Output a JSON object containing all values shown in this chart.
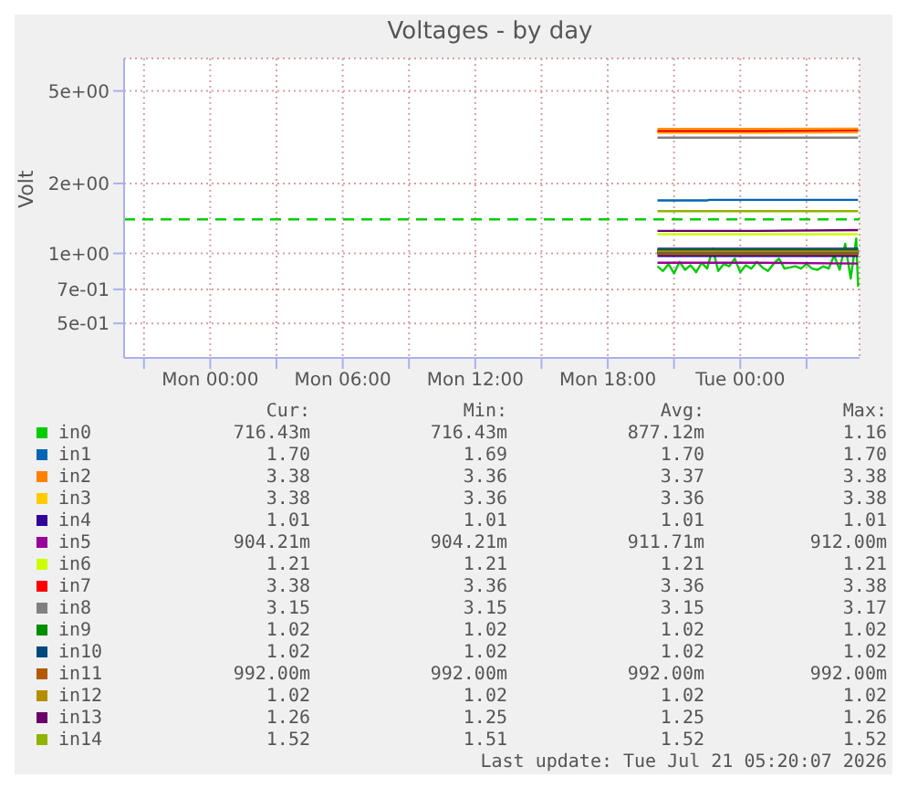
{
  "chart_data": {
    "type": "line",
    "title": "Voltages - by day",
    "ylabel": "Volt",
    "log": true,
    "grid": true,
    "legend": "bottom",
    "xlim": [
      "2026-07-19T20:06",
      "2026-07-21T05:24"
    ],
    "xticks": [
      {
        "value": "2026-07-19T21:00",
        "label": null
      },
      {
        "value": "2026-07-20T00:00",
        "label": "Mon 00:00"
      },
      {
        "value": "2026-07-20T03:00",
        "label": null
      },
      {
        "value": "2026-07-20T06:00",
        "label": "Mon 06:00"
      },
      {
        "value": "2026-07-20T09:00",
        "label": null
      },
      {
        "value": "2026-07-20T12:00",
        "label": "Mon 12:00"
      },
      {
        "value": "2026-07-20T15:00",
        "label": null
      },
      {
        "value": "2026-07-20T18:00",
        "label": "Mon 18:00"
      },
      {
        "value": "2026-07-20T21:00",
        "label": null
      },
      {
        "value": "2026-07-21T00:00",
        "label": "Tue 00:00"
      },
      {
        "value": "2026-07-21T03:00",
        "label": null
      }
    ],
    "ylim": [
      0.355,
      6.9
    ],
    "yticks": [
      {
        "value": 0.5,
        "label": "5e-01"
      },
      {
        "value": 0.7,
        "label": "7e-01"
      },
      {
        "value": 1,
        "label": "1e+00"
      },
      {
        "value": 2,
        "label": "2e+00"
      },
      {
        "value": 5,
        "label": "5e+00"
      }
    ],
    "ref_lines": [
      {
        "axis": "y",
        "value": 1.4,
        "color": "#00cc00",
        "line_style": "dashed"
      }
    ],
    "series": [
      {
        "name": "in0",
        "color": "#00cc00",
        "x": [
          "2026-07-20T20:15",
          "2026-07-20T20:30",
          "2026-07-20T20:45",
          "2026-07-20T21:00",
          "2026-07-20T21:15",
          "2026-07-20T21:30",
          "2026-07-20T21:45",
          "2026-07-20T22:00",
          "2026-07-20T22:15",
          "2026-07-20T22:30",
          "2026-07-20T22:45",
          "2026-07-20T23:00",
          "2026-07-20T23:15",
          "2026-07-20T23:30",
          "2026-07-20T23:45",
          "2026-07-21T00:00",
          "2026-07-21T00:15",
          "2026-07-21T00:30",
          "2026-07-21T00:45",
          "2026-07-21T01:00",
          "2026-07-21T01:15",
          "2026-07-21T01:30",
          "2026-07-21T01:45",
          "2026-07-21T02:00",
          "2026-07-21T02:15",
          "2026-07-21T02:30",
          "2026-07-21T02:45",
          "2026-07-21T03:00",
          "2026-07-21T03:15",
          "2026-07-21T03:30",
          "2026-07-21T03:45",
          "2026-07-21T04:00",
          "2026-07-21T04:15",
          "2026-07-21T04:30",
          "2026-07-21T04:45",
          "2026-07-21T05:00",
          "2026-07-21T05:15",
          "2026-07-21T05:20"
        ],
        "values": [
          0.88,
          0.84,
          0.9,
          0.82,
          0.92,
          0.85,
          0.89,
          0.83,
          0.91,
          0.86,
          1.05,
          0.84,
          0.9,
          0.88,
          0.95,
          0.83,
          0.89,
          0.86,
          0.92,
          0.87,
          0.84,
          0.9,
          0.95,
          0.86,
          0.87,
          0.88,
          0.86,
          0.9,
          0.86,
          0.85,
          0.88,
          0.86,
          0.98,
          0.85,
          1.1,
          0.78,
          1.16,
          0.72
        ]
      },
      {
        "name": "in1",
        "color": "#0066b3",
        "x": [
          "2026-07-20T20:15",
          "2026-07-20T22:30",
          "2026-07-20T22:36",
          "2026-07-21T05:20"
        ],
        "values": [
          1.69,
          1.69,
          1.7,
          1.7
        ]
      },
      {
        "name": "in2",
        "color": "#ff8000",
        "x": [
          "2026-07-20T20:15",
          "2026-07-21T00:45",
          "2026-07-21T05:20"
        ],
        "values": [
          3.37,
          3.37,
          3.38
        ]
      },
      {
        "name": "in3",
        "color": "#ffcc00",
        "x": [
          "2026-07-20T20:15",
          "2026-07-21T00:45",
          "2026-07-21T05:20"
        ],
        "values": [
          3.36,
          3.36,
          3.38
        ]
      },
      {
        "name": "in4",
        "color": "#330099",
        "x": [
          "2026-07-20T20:15",
          "2026-07-21T00:45",
          "2026-07-21T05:20"
        ],
        "values": [
          1.01,
          1.01,
          1.01
        ]
      },
      {
        "name": "in5",
        "color": "#990099",
        "x": [
          "2026-07-20T20:15",
          "2026-07-21T00:45",
          "2026-07-21T05:20"
        ],
        "values": [
          0.912,
          0.912,
          0.904
        ]
      },
      {
        "name": "in6",
        "color": "#ccff00",
        "x": [
          "2026-07-20T20:15",
          "2026-07-21T00:45",
          "2026-07-21T05:20"
        ],
        "values": [
          1.21,
          1.21,
          1.21
        ]
      },
      {
        "name": "in7",
        "color": "#ff0000",
        "x": [
          "2026-07-20T20:15",
          "2026-07-21T00:45",
          "2026-07-21T05:20"
        ],
        "values": [
          3.36,
          3.36,
          3.38
        ]
      },
      {
        "name": "in8",
        "color": "#808080",
        "x": [
          "2026-07-20T20:15",
          "2026-07-21T00:45",
          "2026-07-21T05:20"
        ],
        "values": [
          3.15,
          3.15,
          3.15
        ]
      },
      {
        "name": "in9",
        "color": "#008f00",
        "x": [
          "2026-07-20T20:15",
          "2026-07-21T00:45",
          "2026-07-21T05:20"
        ],
        "values": [
          1.02,
          1.02,
          1.02
        ]
      },
      {
        "name": "in10",
        "color": "#00487d",
        "x": [
          "2026-07-20T20:15",
          "2026-07-21T00:45",
          "2026-07-21T05:20"
        ],
        "values": [
          1.02,
          1.02,
          1.02
        ]
      },
      {
        "name": "in11",
        "color": "#b35a00",
        "x": [
          "2026-07-20T20:15",
          "2026-07-21T00:45",
          "2026-07-21T05:20"
        ],
        "values": [
          0.992,
          0.992,
          0.992
        ]
      },
      {
        "name": "in12",
        "color": "#b38f00",
        "x": [
          "2026-07-20T20:15",
          "2026-07-21T00:45",
          "2026-07-21T05:20"
        ],
        "values": [
          1.02,
          1.02,
          1.02
        ]
      },
      {
        "name": "in13",
        "color": "#6b006b",
        "x": [
          "2026-07-20T20:15",
          "2026-07-21T00:45",
          "2026-07-21T05:20"
        ],
        "values": [
          1.25,
          1.25,
          1.26
        ]
      },
      {
        "name": "in14",
        "color": "#8fb300",
        "x": [
          "2026-07-20T20:15",
          "2026-07-21T00:45",
          "2026-07-21T05:20"
        ],
        "values": [
          1.52,
          1.52,
          1.52
        ]
      }
    ],
    "annotations": [
      "Cur:",
      "Min:",
      "Avg:",
      "Max:",
      "716.43m",
      "716.43m",
      "877.12m",
      "1.16",
      "1.70",
      "1.69",
      "1.70",
      "1.70",
      "3.38",
      "3.36",
      "3.37",
      "3.38",
      "3.38",
      "3.36",
      "3.36",
      "3.38",
      "1.01",
      "1.01",
      "1.01",
      "1.01",
      "904.21m",
      "904.21m",
      "911.71m",
      "912.00m",
      "1.21",
      "1.21",
      "1.21",
      "1.21",
      "3.38",
      "3.36",
      "3.36",
      "3.38",
      "3.15",
      "3.15",
      "3.15",
      "3.17",
      "1.02",
      "1.02",
      "1.02",
      "1.02",
      "1.02",
      "1.02",
      "1.02",
      "1.02",
      "992.00m",
      "992.00m",
      "992.00m",
      "992.00m",
      "1.02",
      "1.02",
      "1.02",
      "1.02",
      "1.26",
      "1.25",
      "1.25",
      "1.26",
      "1.52",
      "1.51",
      "1.52",
      "1.52",
      "Last update: Tue Jul 21 05:20:07 2026"
    ]
  }
}
